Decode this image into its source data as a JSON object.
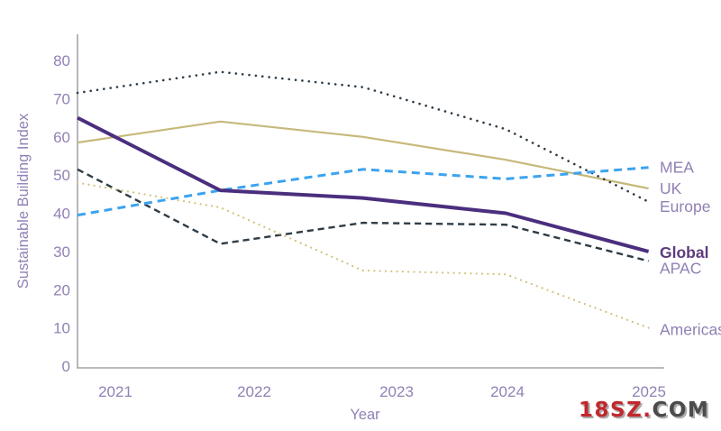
{
  "page": {
    "background": "#ffffff"
  },
  "watermark": {
    "part_red": "18SZ.",
    "part_gray": "COM",
    "color_red": "#c1272d",
    "color_gray": "#4b4b4b",
    "shadow_color": "#ababab"
  },
  "chart_data": {
    "type": "line",
    "title": "",
    "xlabel": "Year",
    "ylabel": "Sustainable Building Index",
    "x_labels": [
      "2021",
      "2022",
      "2023",
      "2024",
      "2025"
    ],
    "yticks": [
      0,
      10,
      20,
      30,
      40,
      50,
      60,
      70,
      80
    ],
    "ylim": [
      0,
      87
    ],
    "grid": false,
    "legend_position": "right-edge-labels",
    "axis_color": "#a5a5ab",
    "tick_label_color": "#9181b4",
    "axis_title_color": "#9181b4",
    "series": [
      {
        "name": "UK",
        "color": "#c6b97a",
        "style": "solid",
        "width": 2.2,
        "values": [
          58.5,
          64,
          60,
          54,
          46.5
        ],
        "label_color": "#9181b4",
        "label_bold": false
      },
      {
        "name": "Europe",
        "color": "#2e3c46",
        "style": "dotted",
        "width": 2.6,
        "values": [
          71.5,
          77,
          73,
          62,
          43
        ],
        "label_color": "#9181b4",
        "label_bold": false
      },
      {
        "name": "APAC",
        "color": "#2e3c46",
        "style": "dashed",
        "width": 2.4,
        "values": [
          51.5,
          32,
          37.5,
          37,
          27.5
        ],
        "label_color": "#9181b4",
        "label_bold": false
      },
      {
        "name": "Americas",
        "color": "#d2c47e",
        "style": "dotted",
        "width": 2.2,
        "values": [
          48,
          41.5,
          25,
          24,
          10
        ],
        "label_color": "#9181b4",
        "label_bold": false
      },
      {
        "name": "MEA",
        "color": "#3ba3ef",
        "style": "dashed",
        "width": 3,
        "values": [
          39.5,
          46,
          51.5,
          49,
          52
        ],
        "label_color": "#9181b4",
        "label_bold": false
      },
      {
        "name": "Global",
        "color": "#4b2e7e",
        "style": "solid",
        "width": 4,
        "values": [
          65,
          46,
          44,
          40,
          30
        ],
        "label_color": "#5d3b7d",
        "label_bold": true
      }
    ]
  }
}
